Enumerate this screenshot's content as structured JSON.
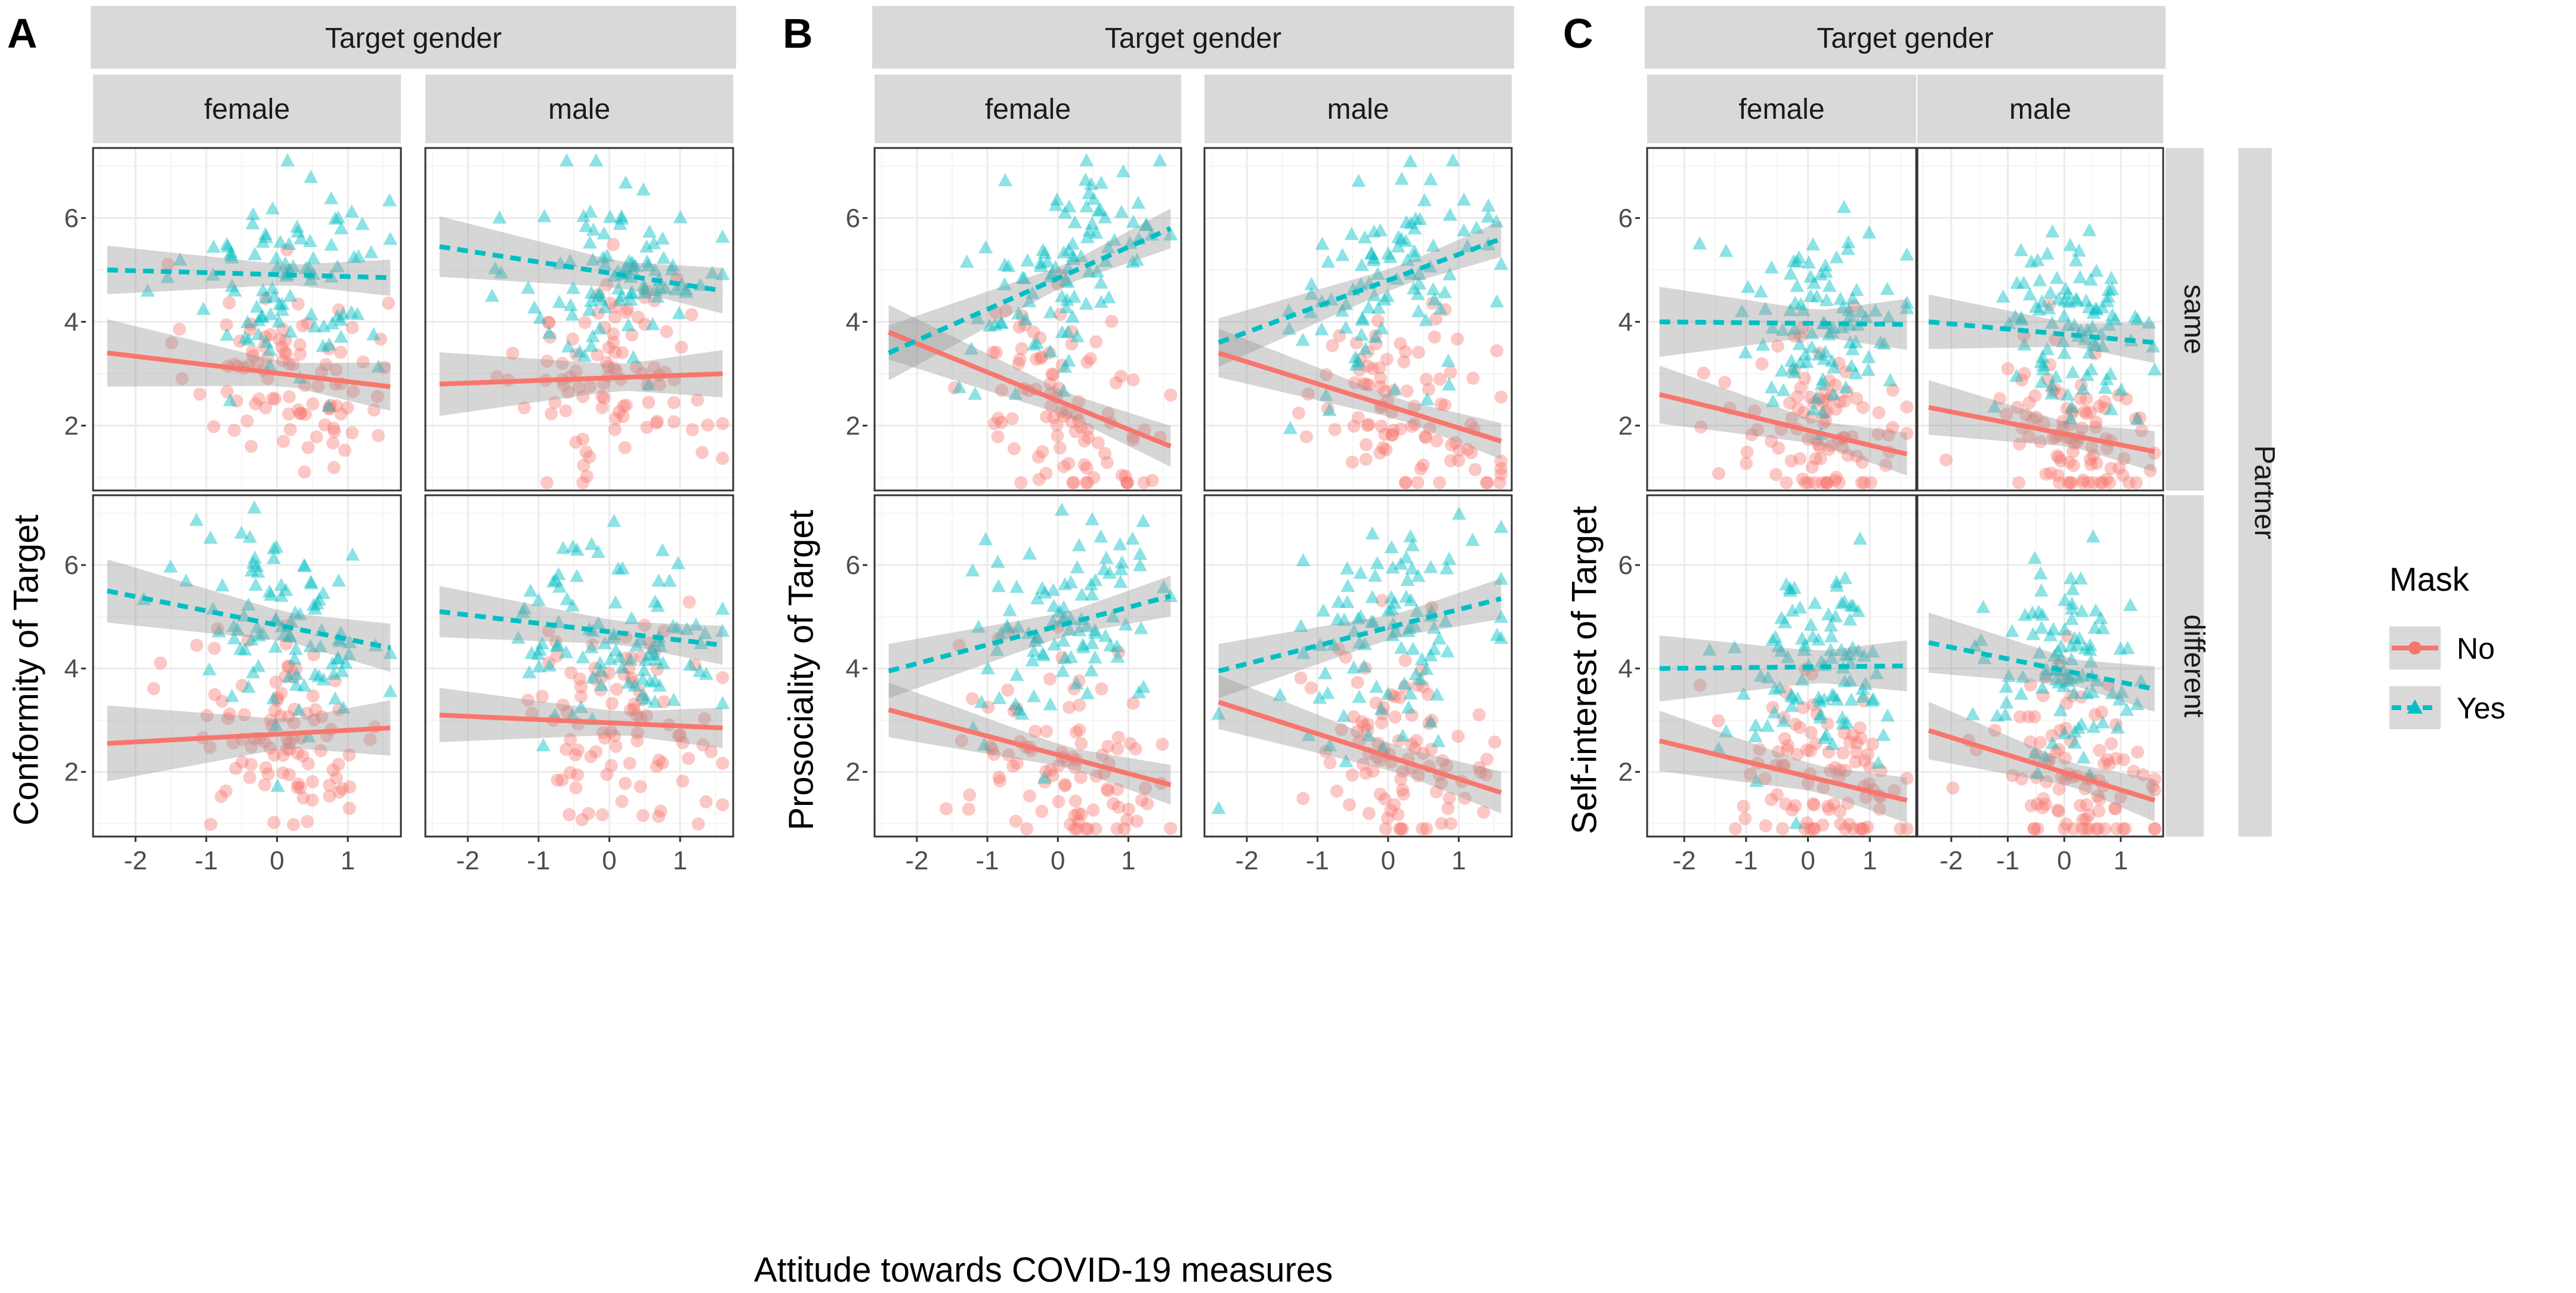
{
  "colors": {
    "no": "#F8766D",
    "yes": "#00BFC4",
    "strip": "#D9D9D9",
    "grid_major": "#EBEBEB",
    "grid_minor": "#F5F5F5",
    "band": "#999999",
    "frame": "#333333"
  },
  "strips": {
    "target_gender": "Target gender",
    "female": "female",
    "male": "male",
    "same": "same",
    "different": "different",
    "partner": "Partner"
  },
  "x_axis_title": "Attitude towards COVID-19 measures",
  "legend": {
    "title": "Mask",
    "no": "No",
    "yes": "Yes"
  },
  "chart_data": [
    {
      "type": "scatter",
      "letter": "A",
      "title": "A",
      "ylabel": "Conformity of Target",
      "xlabel": "Attitude towards COVID-19 measures",
      "xlim": [
        -2.6,
        1.75
      ],
      "ylim": [
        0.75,
        7.35
      ],
      "x_ticks": [
        -2,
        -1,
        0,
        1
      ],
      "x_tick_labels": [
        "-2",
        "-1",
        "0",
        "1"
      ],
      "y_ticks": [
        2,
        4,
        6
      ],
      "y_tick_labels": [
        "2",
        "4",
        "6"
      ],
      "columns": [
        "female",
        "male"
      ],
      "rows": [
        "same",
        "different"
      ],
      "facets": [
        {
          "gender": "female",
          "partner": "same",
          "no_line": {
            "x": [
              -2.4,
              1.6
            ],
            "y": [
              3.4,
              2.75
            ]
          },
          "no_band_halfwidth": [
            0.7,
            0.4
          ],
          "yes_line": {
            "x": [
              -2.4,
              1.6
            ],
            "y": [
              5.0,
              4.85
            ]
          },
          "yes_band_halfwidth": [
            0.45,
            0.35
          ]
        },
        {
          "gender": "male",
          "partner": "same",
          "no_line": {
            "x": [
              -2.4,
              1.6
            ],
            "y": [
              2.8,
              3.0
            ]
          },
          "no_band_halfwidth": [
            0.6,
            0.45
          ],
          "yes_line": {
            "x": [
              -2.4,
              1.6
            ],
            "y": [
              5.45,
              4.6
            ]
          },
          "yes_band_halfwidth": [
            0.55,
            0.45
          ]
        },
        {
          "gender": "female",
          "partner": "different",
          "no_line": {
            "x": [
              -2.4,
              1.6
            ],
            "y": [
              2.55,
              2.85
            ]
          },
          "no_band_halfwidth": [
            0.75,
            0.5
          ],
          "yes_line": {
            "x": [
              -2.4,
              1.6
            ],
            "y": [
              5.5,
              4.4
            ]
          },
          "yes_band_halfwidth": [
            0.55,
            0.5
          ]
        },
        {
          "gender": "male",
          "partner": "different",
          "no_line": {
            "x": [
              -2.4,
              1.6
            ],
            "y": [
              3.1,
              2.85
            ]
          },
          "no_band_halfwidth": [
            0.5,
            0.4
          ],
          "yes_line": {
            "x": [
              -2.4,
              1.6
            ],
            "y": [
              5.1,
              4.45
            ]
          },
          "yes_band_halfwidth": [
            0.45,
            0.4
          ]
        }
      ]
    },
    {
      "type": "scatter",
      "letter": "B",
      "title": "B",
      "ylabel": "Prosociality of Target",
      "xlabel": "Attitude towards COVID-19 measures",
      "xlim": [
        -2.6,
        1.75
      ],
      "ylim": [
        0.75,
        7.35
      ],
      "x_ticks": [
        -2,
        -1,
        0,
        1
      ],
      "x_tick_labels": [
        "-2",
        "-1",
        "0",
        "1"
      ],
      "y_ticks": [
        2,
        4,
        6
      ],
      "y_tick_labels": [
        "2",
        "4",
        "6"
      ],
      "columns": [
        "female",
        "male"
      ],
      "rows": [
        "same",
        "different"
      ],
      "facets": [
        {
          "gender": "female",
          "partner": "same",
          "no_line": {
            "x": [
              -2.4,
              1.6
            ],
            "y": [
              3.8,
              1.6
            ]
          },
          "no_band_halfwidth": [
            0.5,
            0.4
          ],
          "yes_line": {
            "x": [
              -2.4,
              1.6
            ],
            "y": [
              3.4,
              5.8
            ]
          },
          "yes_band_halfwidth": [
            0.55,
            0.35
          ]
        },
        {
          "gender": "male",
          "partner": "same",
          "no_line": {
            "x": [
              -2.4,
              1.6
            ],
            "y": [
              3.4,
              1.7
            ]
          },
          "no_band_halfwidth": [
            0.45,
            0.35
          ],
          "yes_line": {
            "x": [
              -2.4,
              1.6
            ],
            "y": [
              3.6,
              5.6
            ]
          },
          "yes_band_halfwidth": [
            0.45,
            0.35
          ]
        },
        {
          "gender": "female",
          "partner": "different",
          "no_line": {
            "x": [
              -2.4,
              1.6
            ],
            "y": [
              3.2,
              1.75
            ]
          },
          "no_band_halfwidth": [
            0.55,
            0.35
          ],
          "yes_line": {
            "x": [
              -2.4,
              1.6
            ],
            "y": [
              3.95,
              5.4
            ]
          },
          "yes_band_halfwidth": [
            0.5,
            0.4
          ]
        },
        {
          "gender": "male",
          "partner": "different",
          "no_line": {
            "x": [
              -2.4,
              1.6
            ],
            "y": [
              3.35,
              1.6
            ]
          },
          "no_band_halfwidth": [
            0.45,
            0.45
          ],
          "yes_line": {
            "x": [
              -2.4,
              1.6
            ],
            "y": [
              3.95,
              5.35
            ]
          },
          "yes_band_halfwidth": [
            0.5,
            0.4
          ]
        }
      ]
    },
    {
      "type": "scatter",
      "letter": "C",
      "title": "C",
      "ylabel": "Self-interest of Target",
      "xlabel": "Attitude towards COVID-19 measures",
      "xlim": [
        -2.6,
        1.75
      ],
      "ylim": [
        0.75,
        7.35
      ],
      "x_ticks": [
        -2,
        -1,
        0,
        1
      ],
      "x_tick_labels": [
        "-2",
        "-1",
        "0",
        "1"
      ],
      "y_ticks": [
        2,
        4,
        6
      ],
      "y_tick_labels": [
        "2",
        "4",
        "6"
      ],
      "columns": [
        "female",
        "male"
      ],
      "rows": [
        "same",
        "different"
      ],
      "facets": [
        {
          "gender": "female",
          "partner": "same",
          "no_line": {
            "x": [
              -2.4,
              1.6
            ],
            "y": [
              2.6,
              1.45
            ]
          },
          "no_band_halfwidth": [
            0.55,
            0.4
          ],
          "yes_line": {
            "x": [
              -2.4,
              1.6
            ],
            "y": [
              4.0,
              3.95
            ]
          },
          "yes_band_halfwidth": [
            0.7,
            0.45
          ]
        },
        {
          "gender": "male",
          "partner": "same",
          "no_line": {
            "x": [
              -2.4,
              1.6
            ],
            "y": [
              2.35,
              1.5
            ]
          },
          "no_band_halfwidth": [
            0.5,
            0.4
          ],
          "yes_line": {
            "x": [
              -2.4,
              1.6
            ],
            "y": [
              4.0,
              3.6
            ]
          },
          "yes_band_halfwidth": [
            0.5,
            0.4
          ]
        },
        {
          "gender": "female",
          "partner": "different",
          "no_line": {
            "x": [
              -2.4,
              1.6
            ],
            "y": [
              2.6,
              1.45
            ]
          },
          "no_band_halfwidth": [
            0.55,
            0.45
          ],
          "yes_line": {
            "x": [
              -2.4,
              1.6
            ],
            "y": [
              4.0,
              4.05
            ]
          },
          "yes_band_halfwidth": [
            0.55,
            0.55
          ]
        },
        {
          "gender": "male",
          "partner": "different",
          "no_line": {
            "x": [
              -2.4,
              1.6
            ],
            "y": [
              2.8,
              1.45
            ]
          },
          "no_band_halfwidth": [
            0.55,
            0.4
          ],
          "yes_line": {
            "x": [
              -2.4,
              1.6
            ],
            "y": [
              4.5,
              3.6
            ]
          },
          "yes_band_halfwidth": [
            0.55,
            0.45
          ]
        }
      ]
    }
  ]
}
